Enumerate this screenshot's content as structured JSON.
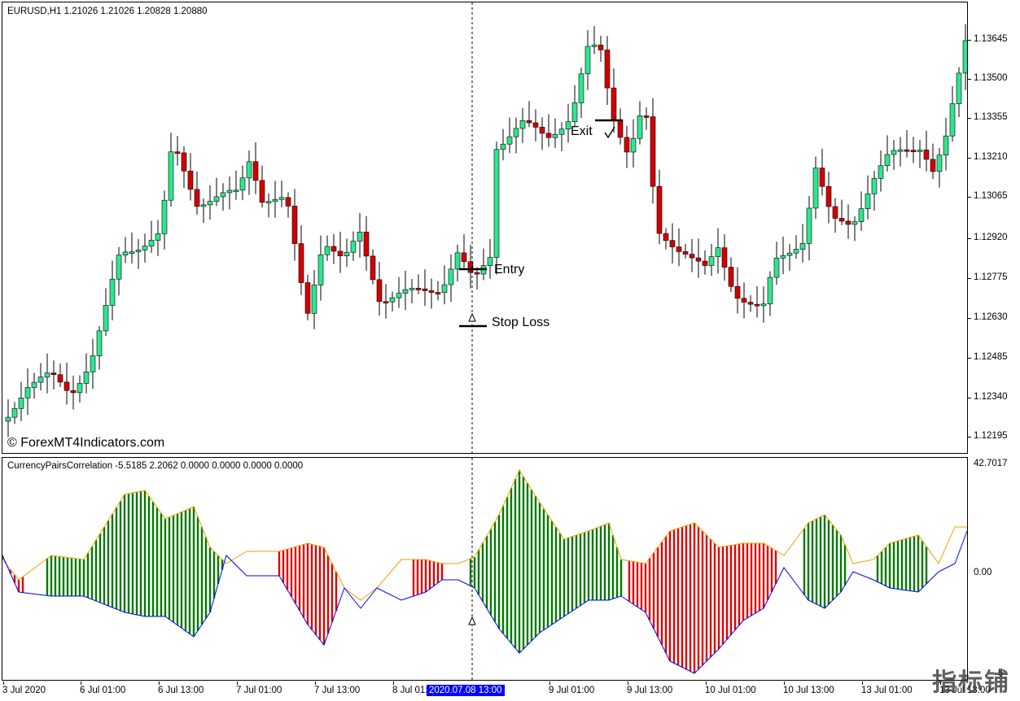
{
  "chart": {
    "symbol_header": "EURUSD,H1  1.21026 1.21026 1.20828 1.20880",
    "watermark": "© ForexMT4Indicators.com",
    "annotations": {
      "entry": "Entry",
      "stop_loss": "Stop Loss",
      "exit": "Exit"
    },
    "price_axis": [
      "1.13645",
      "1.13500",
      "1.13355",
      "1.13210",
      "1.13065",
      "1.12920",
      "1.12775",
      "1.12630",
      "1.12485",
      "1.12340",
      "1.12195"
    ],
    "colors": {
      "bull": "#2ee68f",
      "bear": "#d40000",
      "hist_pos": "#007a00",
      "hist_neg": "#e00000",
      "line_blue": "#0000ff",
      "line_orange": "#f0a000",
      "highlight": "#0000ff"
    }
  },
  "indicator": {
    "header": "CurrencyPairsCorrelation -5.5185 2.2062 0.0000 0.0000 0.0000 0.0000",
    "scale_top": "42.7017",
    "scale_zero": "0.00",
    "scale_bottom": "5"
  },
  "time_axis": {
    "labels": [
      "3 Jul 2020",
      "6 Jul 01:00",
      "6 Jul 13:00",
      "7 Jul 01:00",
      "7 Jul 13:00",
      "8 Jul 01:00",
      "9 Jul 01:00",
      "9 Jul 13:00",
      "10 Jul 01:00",
      "10 Jul 13:00",
      "13 Jul 01:00",
      "13 Jul 13:00"
    ],
    "cursor_label": "2020.07.08 13:00"
  },
  "logo_text": "指标铺"
}
